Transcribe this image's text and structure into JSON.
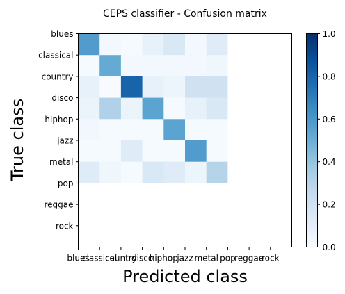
{
  "chart_data": {
    "type": "heatmap",
    "title": "CEPS classifier - Confusion matrix",
    "xlabel": "Predicted class",
    "ylabel": "True class",
    "x_categories": [
      "blues",
      "classical",
      "country",
      "disco",
      "hiphop",
      "jazz",
      "metal",
      "pop",
      "reggae",
      "rock"
    ],
    "y_categories": [
      "blues",
      "classical",
      "country",
      "disco",
      "hiphop",
      "jazz",
      "metal",
      "pop",
      "reggae",
      "rock"
    ],
    "values": [
      [
        0.58,
        0.02,
        0.01,
        0.08,
        0.15,
        0.02,
        0.12,
        0.0,
        0.0,
        0.0
      ],
      [
        0.01,
        0.52,
        0.02,
        0.02,
        0.02,
        0.02,
        0.04,
        0.0,
        0.0,
        0.0
      ],
      [
        0.08,
        0.0,
        0.8,
        0.08,
        0.05,
        0.2,
        0.2,
        0.0,
        0.0,
        0.0
      ],
      [
        0.06,
        0.32,
        0.06,
        0.55,
        0.01,
        0.08,
        0.15,
        0.0,
        0.0,
        0.0
      ],
      [
        0.03,
        0.01,
        0.01,
        0.01,
        0.55,
        0.01,
        0.01,
        0.0,
        0.0,
        0.0
      ],
      [
        0.01,
        0.01,
        0.12,
        0.01,
        0.01,
        0.58,
        0.01,
        0.0,
        0.0,
        0.0
      ],
      [
        0.12,
        0.04,
        0.01,
        0.15,
        0.12,
        0.05,
        0.3,
        0.0,
        0.0,
        0.0
      ],
      [
        0,
        0,
        0,
        0,
        0,
        0,
        0,
        0,
        0,
        0
      ],
      [
        0,
        0,
        0,
        0,
        0,
        0,
        0,
        0,
        0,
        0
      ],
      [
        0,
        0,
        0,
        0,
        0,
        0,
        0,
        0,
        0,
        0
      ]
    ],
    "empty_rows": [
      "pop",
      "reggae",
      "rock"
    ],
    "empty_columns": [
      "pop",
      "reggae",
      "rock"
    ],
    "colormap": "Blues",
    "colorbar": {
      "range": [
        0.0,
        1.0
      ],
      "ticks": [
        "0.0",
        "0.2",
        "0.4",
        "0.6",
        "0.8",
        "1.0"
      ]
    },
    "grid": false,
    "legend": "none"
  }
}
